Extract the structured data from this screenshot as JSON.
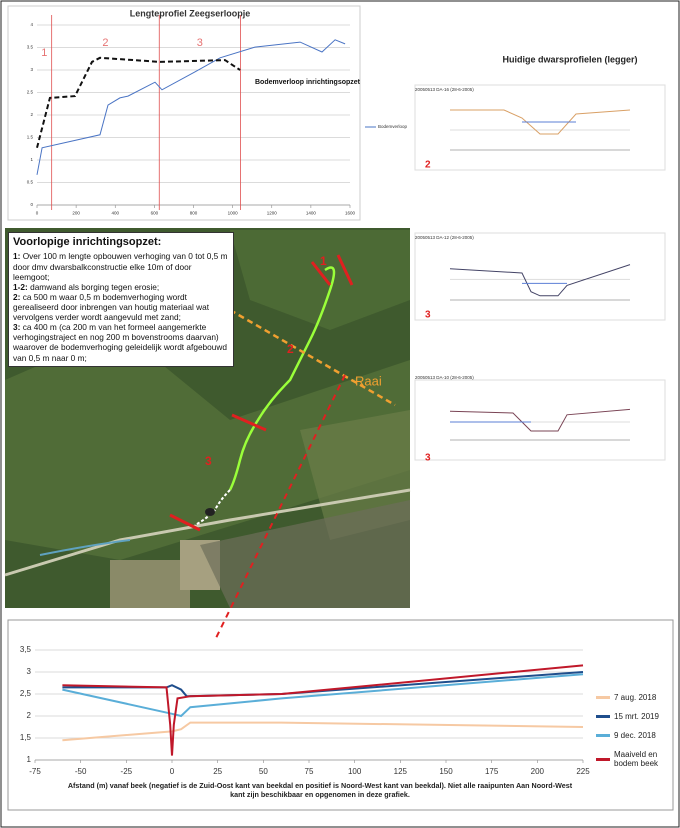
{
  "heading": "Huidige dwarsprofielen (legger)",
  "panel": {
    "title": "Voorlopige inrichtingsopzet:",
    "items": [
      {
        "label": "1:",
        "text": "Over 100 m lengte opbouwen verhoging van 0 tot 0,5 m door dmv dwarsbalkconstructie elke 10m of door leemgoot;"
      },
      {
        "label": "1-2:",
        "text": "damwand als borging tegen erosie;"
      },
      {
        "label": "2:",
        "text": "ca 500 m waar 0,5 m bodemverhoging wordt gerealiseerd door inbrengen van houtig materiaal wat vervolgens verder wordt aangevuld met zand;"
      },
      {
        "label": "3:",
        "text": "ca 400 m (ca 200 m van het formeel aangemerkte verhogingstraject en nog 200 m bovenstrooms daarvan) waarover de bodemverhoging geleidelijk wordt afgebouwd van 0,5 m naar 0 m;"
      }
    ]
  },
  "map": {
    "labels": [
      "1",
      "2",
      "3",
      "Raai"
    ]
  },
  "chart_data": [
    {
      "type": "line",
      "title": "Lengteprofiel Zeegserloopje",
      "annotation": "Bodemverloop inrichtingsopzet",
      "xlim": [
        0,
        1600
      ],
      "xticks": [
        0,
        200,
        400,
        600,
        800,
        1000,
        1200,
        1400,
        1600
      ],
      "ylim": [
        0,
        4
      ],
      "yticks": [
        0,
        0.5,
        1,
        1.5,
        2,
        2.5,
        3,
        3.5,
        4
      ],
      "grid": true,
      "section_lines": [
        75,
        625,
        1040
      ],
      "section_labels": [
        "1",
        "2",
        "3"
      ],
      "section_color": "#e05050",
      "series": [
        {
          "name": "Bodemverloop",
          "color": "#4a74c4",
          "dash": false,
          "x": [
            0,
            26,
            322,
            363,
            424,
            465,
            603,
            639,
            808,
            936,
            1114,
            1345,
            1457,
            1524,
            1575
          ],
          "values": [
            0.67,
            1.27,
            1.56,
            2.22,
            2.38,
            2.42,
            2.73,
            2.56,
            2.96,
            3.27,
            3.51,
            3.62,
            3.4,
            3.67,
            3.58
          ]
        },
        {
          "name": "Bodemverloop inrichtingsopzet",
          "color": "#111111",
          "dash": true,
          "legend": false,
          "x": [
            0,
            66,
            194,
            281,
            322,
            629,
            961,
            1038
          ],
          "values": [
            1.27,
            2.38,
            2.42,
            3.18,
            3.27,
            3.18,
            3.22,
            3.0
          ]
        }
      ]
    },
    {
      "type": "line",
      "title": "20050513 DA-16 (28-6-2005)",
      "label": "2",
      "xlim": [
        0,
        20
      ],
      "ylim": [
        -1,
        1.5
      ],
      "series": [
        {
          "color": "#d9a066",
          "x": [
            0,
            6,
            8,
            10,
            12,
            14,
            20
          ],
          "values": [
            1,
            1,
            0.6,
            -0.2,
            -0.2,
            0.8,
            1
          ]
        },
        {
          "color": "#5b7fd6",
          "x": [
            8,
            14
          ],
          "values": [
            0.4,
            0.4
          ]
        }
      ]
    },
    {
      "type": "line",
      "title": "20050513 DA-12 (28-6-2005)",
      "label": "3",
      "xlim": [
        0,
        20
      ],
      "ylim": [
        -1,
        1.5
      ],
      "series": [
        {
          "color": "#444466",
          "x": [
            0,
            8,
            9,
            10,
            12,
            13,
            20
          ],
          "values": [
            0.5,
            0.3,
            -0.6,
            -0.8,
            -0.8,
            -0.3,
            0.7
          ]
        },
        {
          "color": "#5b7fd6",
          "x": [
            8,
            13
          ],
          "values": [
            -0.2,
            -0.2
          ]
        }
      ]
    },
    {
      "type": "line",
      "title": "20050513 DA-10 (28-6-2005)",
      "label": "3",
      "xlim": [
        0,
        20
      ],
      "ylim": [
        -1,
        1.5
      ],
      "series": [
        {
          "color": "#7a4455",
          "x": [
            0,
            7,
            9,
            12,
            13,
            20
          ],
          "values": [
            0.6,
            0.5,
            -0.5,
            -0.5,
            0.4,
            0.7
          ]
        },
        {
          "color": "#5b7fd6",
          "x": [
            0,
            9
          ],
          "values": [
            0,
            0
          ]
        }
      ]
    },
    {
      "type": "line",
      "x_label": "Afstand (m) vanaf beek (negatief is de Zuid-Oost kant van beekdal en positief is Noord-West kant van beekdal). Niet alle raaipunten Aan Noord-West kant zijn beschikbaar en opgenomen in deze grafiek.",
      "xlim": [
        -75,
        225
      ],
      "xticks": [
        -75,
        -50,
        -25,
        0,
        25,
        50,
        75,
        100,
        125,
        150,
        175,
        200,
        225
      ],
      "ylim": [
        1,
        3.5
      ],
      "yticks": [
        1,
        {
          "value": 1.5,
          "label": "1,5"
        },
        2,
        {
          "value": 2.5,
          "label": "2,5"
        },
        3,
        {
          "value": 3.5,
          "label": "3,5"
        }
      ],
      "grid": true,
      "series": [
        {
          "name": "7 aug. 2018",
          "color": "#f6c9a3",
          "x": [
            -60,
            0,
            5,
            10,
            60,
            225
          ],
          "values": [
            1.45,
            1.65,
            1.7,
            1.85,
            1.85,
            1.75
          ]
        },
        {
          "name": "15 mrt. 2019",
          "color": "#1f4e8c",
          "x": [
            -60,
            -3,
            0,
            5,
            8,
            60,
            225
          ],
          "values": [
            2.65,
            2.65,
            2.7,
            2.6,
            2.45,
            2.5,
            3.0
          ]
        },
        {
          "name": "9 dec. 2018",
          "color": "#5aaed8",
          "x": [
            -60,
            0,
            5,
            10,
            60,
            225
          ],
          "values": [
            2.6,
            2.05,
            2.0,
            2.2,
            2.4,
            2.95
          ]
        },
        {
          "name": "Maaiveld en bodem beek",
          "color": "#c0182a",
          "x": [
            -60,
            -3,
            -1,
            0,
            1,
            3,
            10,
            60,
            225
          ],
          "values": [
            2.7,
            2.65,
            1.8,
            1.1,
            1.8,
            2.4,
            2.45,
            2.5,
            3.15
          ]
        }
      ]
    }
  ]
}
